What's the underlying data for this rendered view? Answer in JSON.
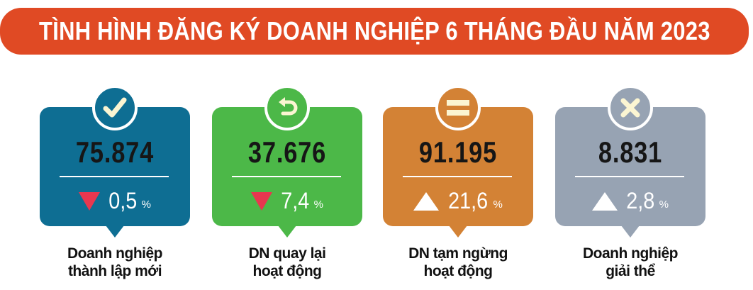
{
  "title": "TÌNH HÌNH ĐĂNG KÝ DOANH NGHIỆP 6 THÁNG ĐẦU NĂM 2023",
  "cards": [
    {
      "value": "75.874",
      "change": "0,5",
      "unit": "%",
      "direction": "down",
      "icon": "check-icon",
      "color": "#0e6e93",
      "label_line1": "Doanh nghiệp",
      "label_line2": "thành lập mới"
    },
    {
      "value": "37.676",
      "change": "7,4",
      "unit": "%",
      "direction": "down",
      "icon": "return-arrow-icon",
      "color": "#4cb848",
      "label_line1": "DN quay lại",
      "label_line2": "hoạt động"
    },
    {
      "value": "91.195",
      "change": "21,6",
      "unit": "%",
      "direction": "up",
      "icon": "pause-equals-icon",
      "color": "#d38235",
      "label_line1": "DN tạm ngừng",
      "label_line2": "hoạt động"
    },
    {
      "value": "8.831",
      "change": "2,8",
      "unit": "%",
      "direction": "up",
      "icon": "close-x-icon",
      "color": "#97a3b3",
      "label_line1": "Doanh nghiệp",
      "label_line2": "giải thể"
    }
  ]
}
